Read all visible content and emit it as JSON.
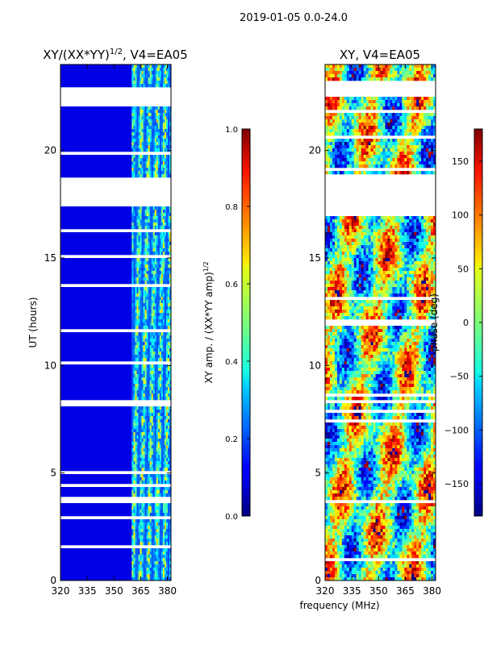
{
  "suptitle": "2019-01-05 0.0-24.0",
  "xlabel": "frequency (MHz)",
  "chart_data": [
    {
      "type": "heatmap",
      "title_main": "XY/(XX*YY)",
      "title_sup": "1/2",
      "title_suffix": ", V4=EA05",
      "xlim": [
        320,
        382
      ],
      "ylim": [
        0,
        24
      ],
      "xticks": [
        320,
        335,
        350,
        365,
        380
      ],
      "yticks": [
        0,
        5,
        10,
        15,
        20
      ],
      "ylabel": "UT (hours)",
      "colorbar": {
        "label_main": "XY amp. / (XX*YY amp)",
        "label_sup": "1/2",
        "range": [
          0.0,
          1.0
        ],
        "ticks": [
          "0.0",
          "0.2",
          "0.4",
          "0.6",
          "0.8",
          "1.0"
        ]
      },
      "low_band_value": 0.1,
      "high_band_start_mhz": 360,
      "high_band_values_range": [
        0.2,
        0.7
      ],
      "blank_hours": [
        [
          17.4,
          18.8
        ],
        [
          22.0,
          23.0
        ]
      ]
    },
    {
      "type": "heatmap",
      "title_main": "XY, V4=EA05",
      "xlim": [
        320,
        382
      ],
      "ylim": [
        0,
        24
      ],
      "xticks": [
        320,
        335,
        350,
        365,
        380
      ],
      "yticks": [
        0,
        5,
        10,
        15,
        20
      ],
      "colorbar": {
        "label_main": "phase (deg)",
        "range": [
          -180,
          180
        ],
        "ticks": [
          "−150",
          "−100",
          "−50",
          "0",
          "50",
          "100",
          "150"
        ]
      },
      "blank_hours": [
        [
          16.9,
          18.9
        ],
        [
          22.5,
          23.2
        ]
      ]
    }
  ]
}
